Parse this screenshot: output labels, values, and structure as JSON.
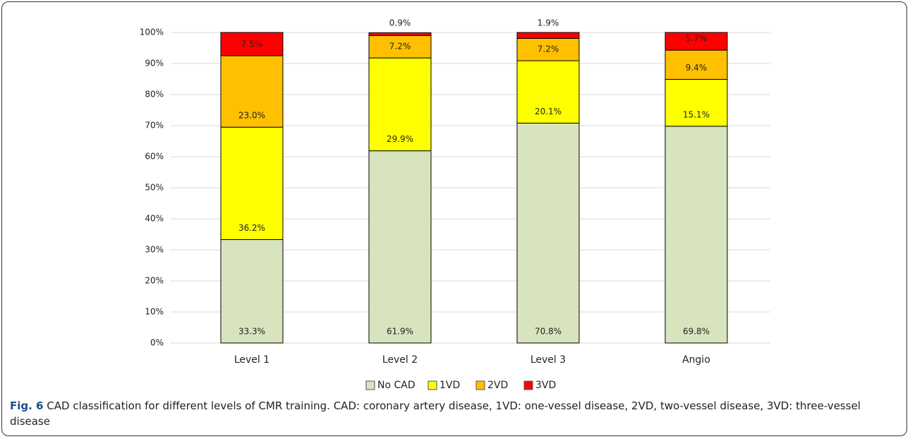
{
  "chart_data": {
    "type": "stacked_bar",
    "categories": [
      "Level 1",
      "Level 2",
      "Level 3",
      "Angio"
    ],
    "series": [
      {
        "name": "No CAD",
        "color": "#d7e4bd",
        "values": [
          33.3,
          61.9,
          70.8,
          69.8
        ],
        "value_labels": [
          "33.3%",
          "61.9%",
          "70.8%",
          "69.8%"
        ]
      },
      {
        "name": "1VD",
        "color": "#ffff00",
        "values": [
          36.2,
          29.9,
          20.1,
          15.1
        ],
        "value_labels": [
          "36.2%",
          "29.9%",
          "20.1%",
          "15.1%"
        ]
      },
      {
        "name": "2VD",
        "color": "#ffc000",
        "values": [
          23.0,
          7.2,
          7.2,
          9.4
        ],
        "value_labels": [
          "23.0%",
          "7.2%",
          "7.2%",
          "9.4%"
        ]
      },
      {
        "name": "3VD",
        "color": "#ff0000",
        "values": [
          7.5,
          0.9,
          1.9,
          5.7
        ],
        "value_labels": [
          "7.5%",
          "0.9%",
          "1.9%",
          "5.7%"
        ]
      }
    ],
    "ylim": [
      0,
      100
    ],
    "yticks": [
      {
        "value": 0,
        "label": "0%"
      },
      {
        "value": 10,
        "label": "10%"
      },
      {
        "value": 20,
        "label": "20%"
      },
      {
        "value": 30,
        "label": "30%"
      },
      {
        "value": 40,
        "label": "40%"
      },
      {
        "value": 50,
        "label": "50%"
      },
      {
        "value": 60,
        "label": "60%"
      },
      {
        "value": 70,
        "label": "70%"
      },
      {
        "value": 80,
        "label": "80%"
      },
      {
        "value": 90,
        "label": "90%"
      },
      {
        "value": 100,
        "label": "100%"
      }
    ],
    "grid": true,
    "legend": "bottom"
  },
  "caption_label": "Fig. 6",
  "caption": "CAD classification for different levels of CMR training. CAD: coronary artery disease, 1VD: one-vessel disease, 2VD, two-vessel disease, 3VD: three-vessel disease"
}
